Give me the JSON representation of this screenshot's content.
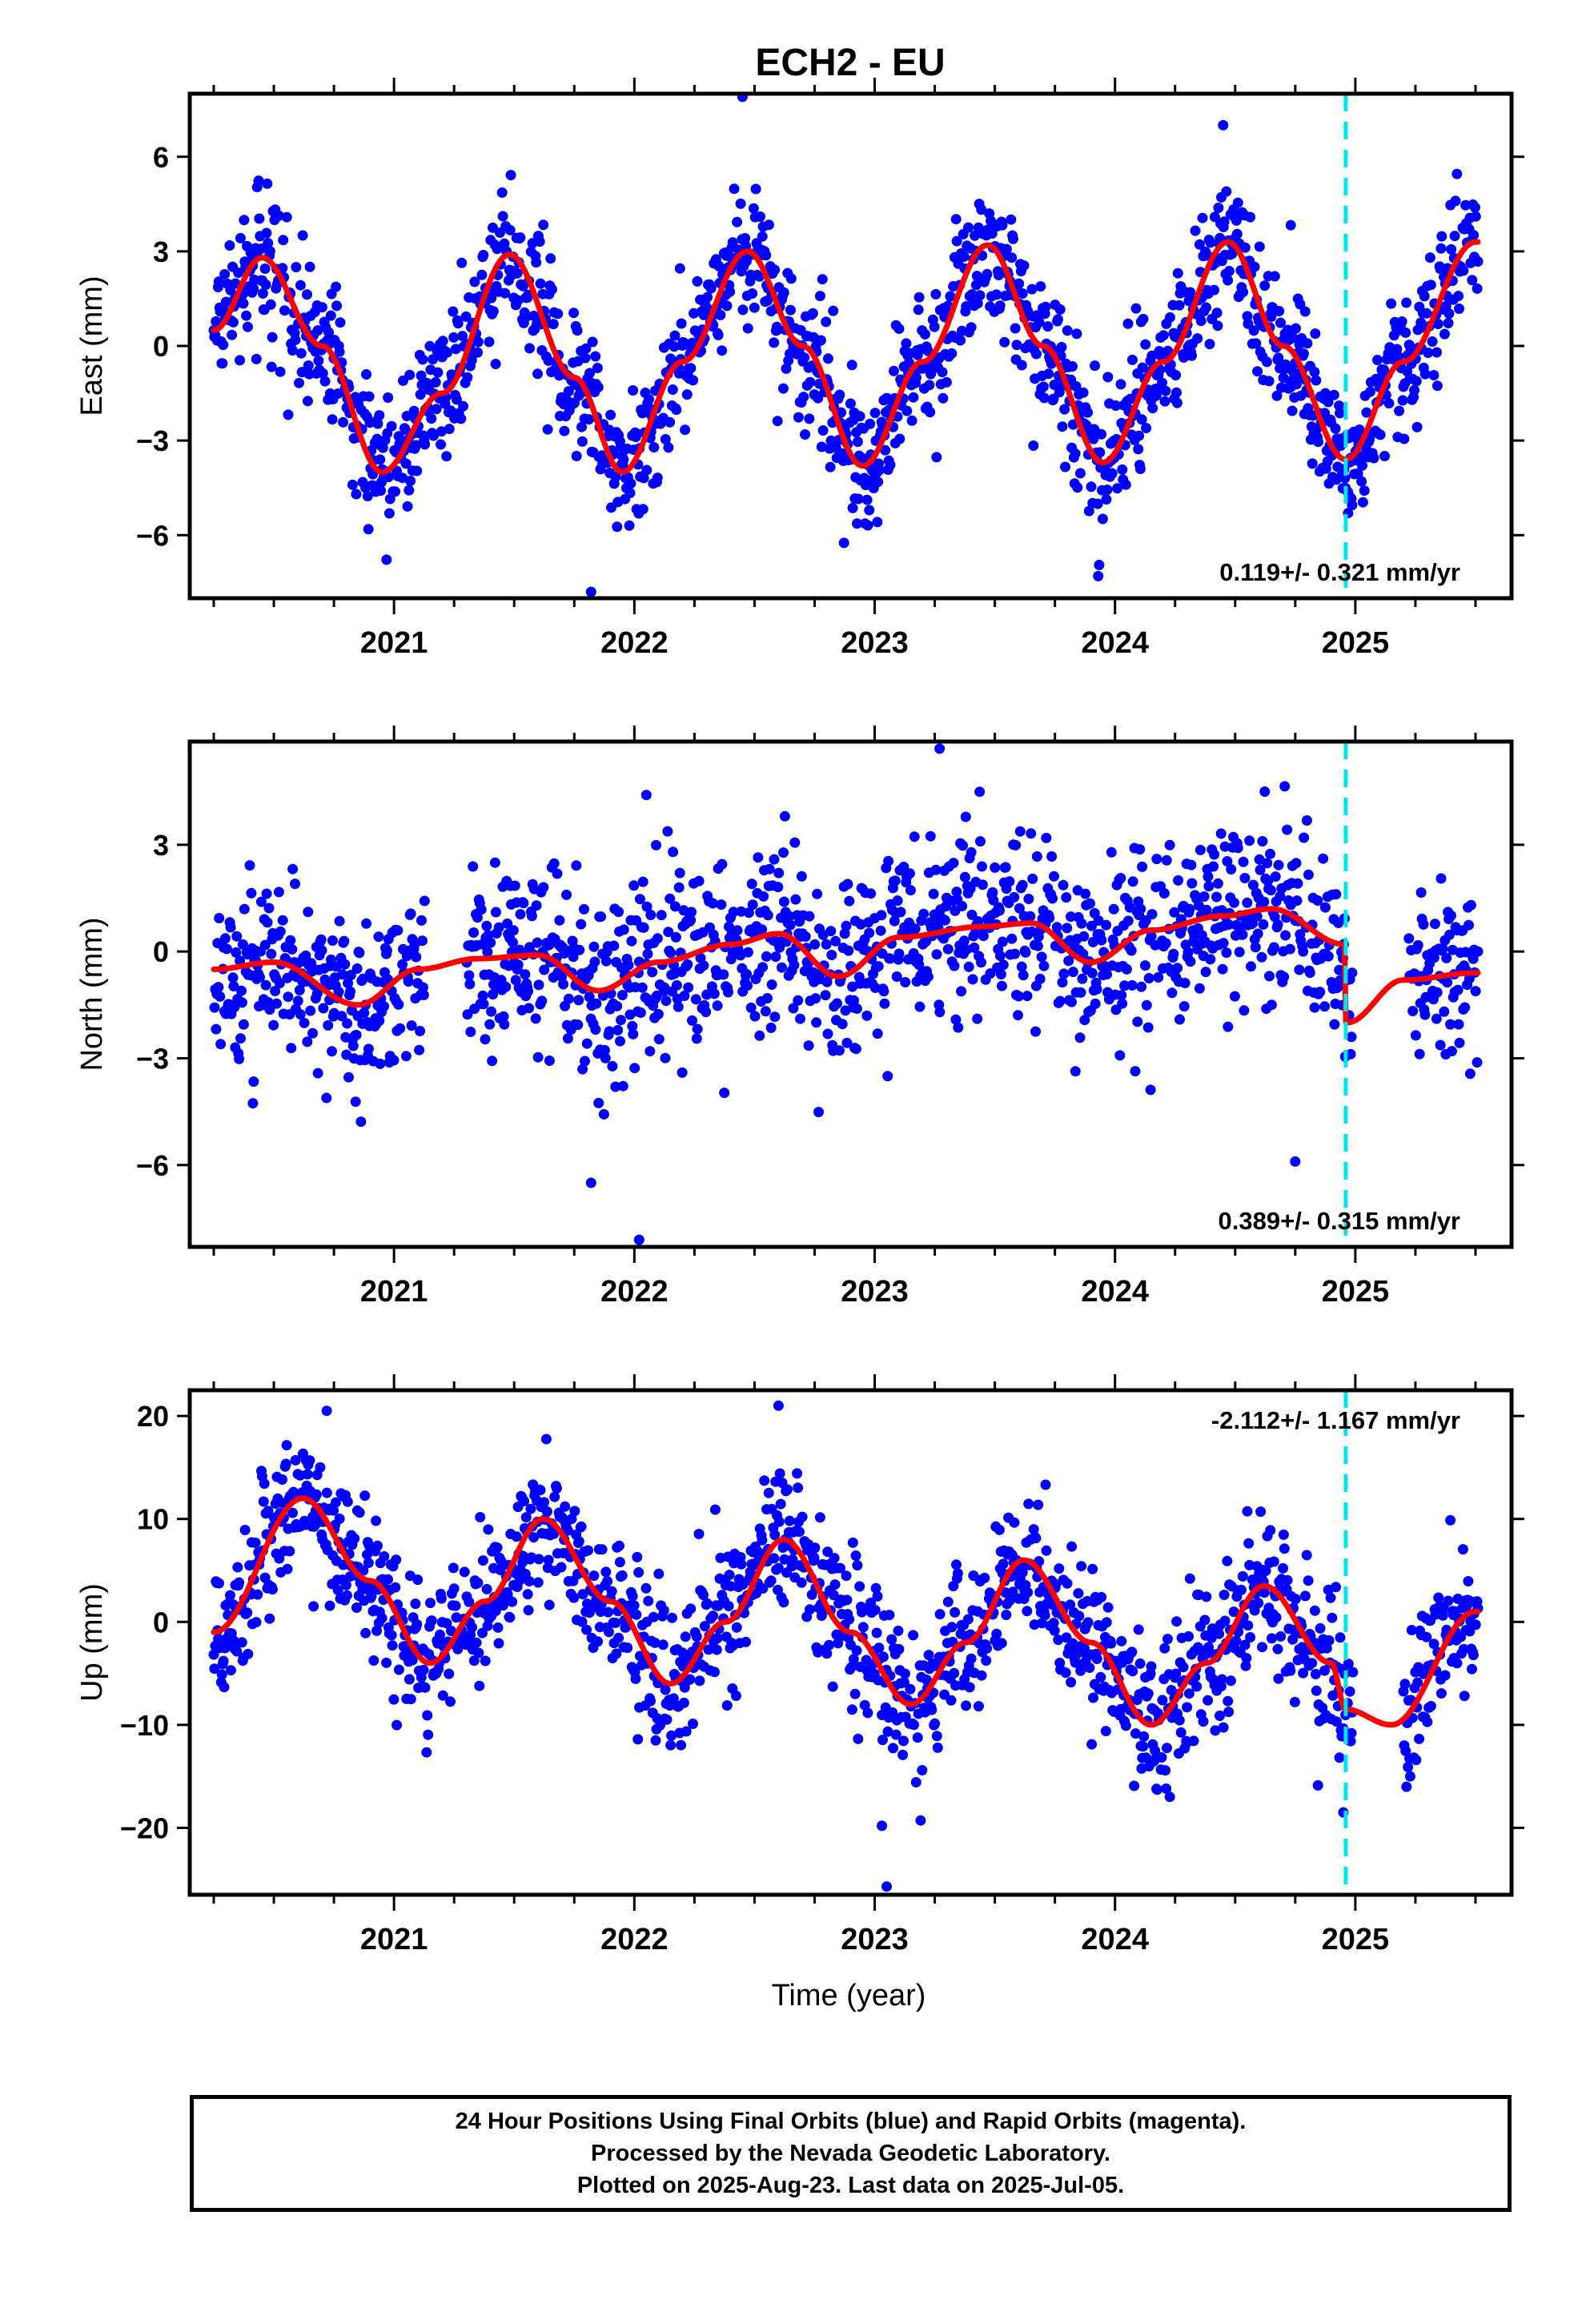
{
  "title": "ECH2 - EU",
  "xlabel": "Time (year)",
  "year_ticks": [
    "2021",
    "2022",
    "2023",
    "2024",
    "2025"
  ],
  "colors": {
    "points": "#0000ff",
    "model": "#ff0000",
    "equipment_change": "#00e5ee",
    "frame": "#000000"
  },
  "caption": {
    "line1": "24 Hour Positions Using Final Orbits (blue) and Rapid Orbits (magenta).",
    "line2": "Processed by the Nevada Geodetic Laboratory.",
    "line3": "Plotted on 2025-Aug-23. Last data on 2025-Jul-05."
  },
  "chart_data": [
    {
      "type": "scatter",
      "component": "east",
      "ylabel": "East (mm)",
      "ylim": [
        -8,
        8
      ],
      "yticks": [
        -6,
        -3,
        0,
        3,
        6
      ],
      "ytick_labels": [
        "−6",
        "−3",
        "0",
        "3",
        "6"
      ],
      "xlim": [
        2020.15,
        2025.65
      ],
      "rate_label": "0.119+/- 0.321 mm/yr",
      "rate_position": "bottom-right",
      "equipment_change_epoch": 2024.96,
      "data_start": 2020.25,
      "data_end": 2025.51,
      "gaps": [],
      "seasonal_model": {
        "knots_x": [
          2020.25,
          2020.45,
          2020.7,
          2020.95,
          2021.2,
          2021.48,
          2021.75,
          2021.95,
          2022.2,
          2022.47,
          2022.7,
          2022.95,
          2023.2,
          2023.47,
          2023.7,
          2023.95,
          2024.2,
          2024.47,
          2024.7,
          2024.96,
          2025.2,
          2025.5
        ],
        "knots_y": [
          0.5,
          2.8,
          0.0,
          -4.0,
          -1.5,
          2.9,
          -1.0,
          -4.0,
          -0.5,
          3.0,
          0.0,
          -3.8,
          -0.5,
          3.2,
          0.0,
          -3.7,
          -0.5,
          3.3,
          0.0,
          -3.6,
          -0.5,
          3.3
        ]
      },
      "scatter_sigma": 1.1,
      "point_count": 1750,
      "outlier_points": [
        [
          2021.82,
          -7.8
        ],
        [
          2022.45,
          7.9
        ],
        [
          2024.45,
          7.0
        ],
        [
          2023.93,
          -7.3
        ],
        [
          2024.97,
          -5.3
        ]
      ]
    },
    {
      "type": "scatter",
      "component": "north",
      "ylabel": "North (mm)",
      "ylim": [
        -8.3,
        5.9
      ],
      "yticks": [
        -6,
        -3,
        0,
        3
      ],
      "ytick_labels": [
        "−6",
        "−3",
        "0",
        "3"
      ],
      "xlim": [
        2020.15,
        2025.65
      ],
      "rate_label": "0.389+/- 0.315 mm/yr",
      "rate_position": "bottom-right",
      "equipment_change_epoch": 2024.96,
      "data_start": 2020.25,
      "data_end": 2025.51,
      "gaps": [
        [
          2021.13,
          2021.3
        ],
        [
          2024.99,
          2025.22
        ]
      ],
      "seasonal_model": {
        "knots_x": [
          2020.25,
          2020.5,
          2020.85,
          2021.1,
          2021.35,
          2021.6,
          2021.85,
          2022.1,
          2022.4,
          2022.6,
          2022.85,
          2023.1,
          2023.45,
          2023.65,
          2023.9,
          2024.15,
          2024.45,
          2024.65,
          2024.955,
          2024.965,
          2025.2,
          2025.5
        ],
        "knots_y": [
          -0.5,
          -0.3,
          -1.5,
          -0.5,
          -0.2,
          -0.1,
          -1.1,
          -0.3,
          0.2,
          0.5,
          -0.7,
          0.4,
          0.7,
          0.8,
          -0.3,
          0.6,
          1.0,
          1.2,
          0.2,
          -2.0,
          -0.8,
          -0.6
        ]
      },
      "scatter_sigma": 1.3,
      "point_count": 1650,
      "outlier_points": [
        [
          2023.27,
          5.7
        ],
        [
          2022.02,
          -8.1
        ],
        [
          2021.82,
          -6.5
        ],
        [
          2024.75,
          -5.9
        ],
        [
          2022.05,
          4.4
        ]
      ]
    },
    {
      "type": "scatter",
      "component": "up",
      "ylabel": "Up (mm)",
      "ylim": [
        -26.5,
        22.5
      ],
      "yticks": [
        -20,
        -10,
        0,
        10,
        20
      ],
      "ytick_labels": [
        "−20",
        "−10",
        "0",
        "10",
        "20"
      ],
      "xlim": [
        2020.15,
        2025.65
      ],
      "rate_label": "-2.112+/- 1.167 mm/yr",
      "rate_position": "top-right",
      "equipment_change_epoch": 2024.96,
      "data_start": 2020.25,
      "data_end": 2025.51,
      "gaps": [
        [
          2024.99,
          2025.2
        ]
      ],
      "seasonal_model": {
        "knots_x": [
          2020.25,
          2020.62,
          2020.9,
          2021.15,
          2021.38,
          2021.62,
          2021.9,
          2022.15,
          2022.38,
          2022.62,
          2022.9,
          2023.15,
          2023.38,
          2023.62,
          2023.9,
          2024.15,
          2024.38,
          2024.62,
          2024.9,
          2024.96,
          2025.15,
          2025.5
        ],
        "knots_y": [
          -1.0,
          12.0,
          4.0,
          -4.0,
          2.0,
          10.0,
          2.0,
          -6.0,
          0.0,
          8.0,
          -1.0,
          -8.0,
          -2.0,
          6.0,
          -2.0,
          -10.0,
          -4.0,
          3.5,
          -4.0,
          -8.5,
          -10.0,
          1.0
        ]
      },
      "scatter_sigma": 3.5,
      "point_count": 1700,
      "outlier_points": [
        [
          2022.6,
          21.0
        ],
        [
          2023.05,
          -25.7
        ],
        [
          2023.03,
          -19.8
        ],
        [
          2020.72,
          20.5
        ],
        [
          2024.95,
          -18.5
        ]
      ]
    }
  ]
}
